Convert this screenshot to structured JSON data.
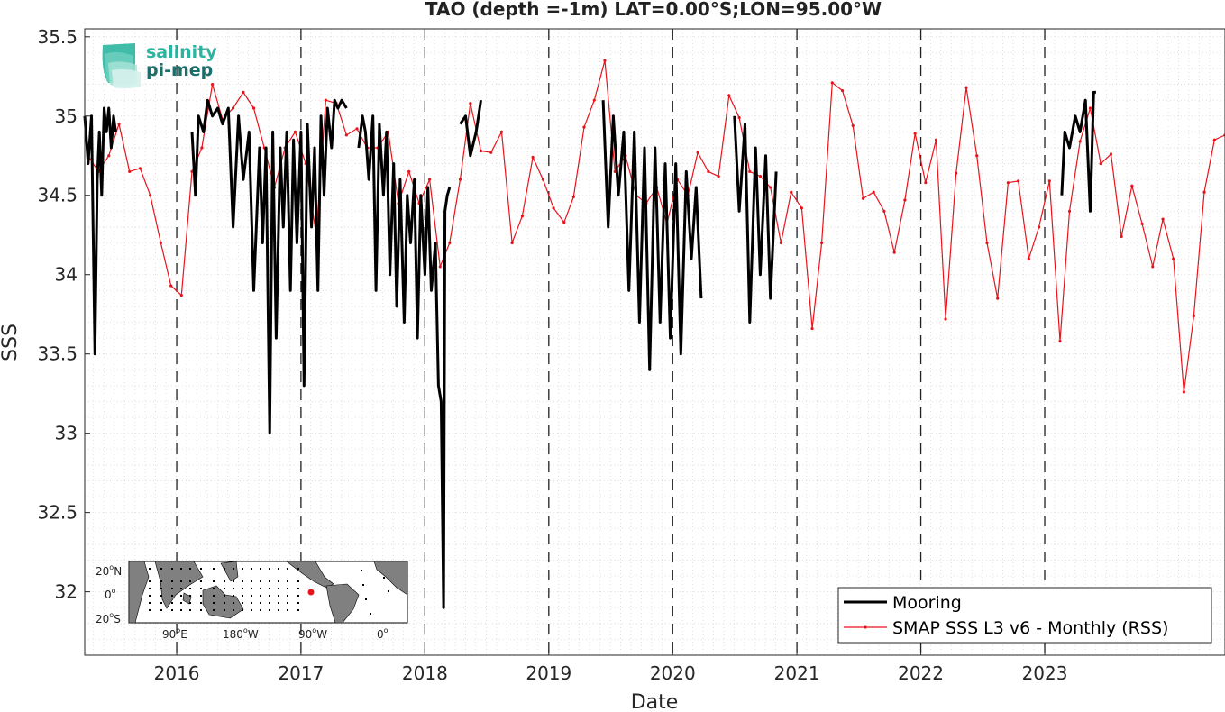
{
  "logo": {
    "line1": "salinity",
    "line2": "pi-mep",
    "color1": "#2bb5a0",
    "color2": "#1b6e6a"
  },
  "chart_data": {
    "type": "line",
    "title": "TAO (depth =-1m) LAT=0.00°S;LON=95.00°W",
    "xlabel": "Date",
    "ylabel": "SSS",
    "xlim": [
      "2015-04-05",
      "2024-06-15"
    ],
    "ylim": [
      31.6,
      35.55
    ],
    "yticks": [
      32,
      32.5,
      33,
      33.5,
      34,
      34.5,
      35,
      35.5
    ],
    "ytick_labels": [
      "32",
      "32.5",
      "33",
      "33.5",
      "34",
      "34.5",
      "35",
      "35.5"
    ],
    "xticks": [
      "2016-01-01",
      "2017-01-01",
      "2018-01-01",
      "2019-01-01",
      "2020-01-01",
      "2021-01-01",
      "2022-01-01",
      "2023-01-01"
    ],
    "xtick_labels": [
      "2016",
      "2017",
      "2018",
      "2019",
      "2020",
      "2021",
      "2022",
      "2023"
    ],
    "grid": true,
    "year_separators": "dashed",
    "legend": {
      "position": "bottom-right",
      "items": [
        "Mooring",
        "SMAP SSS L3 v6 - Monthly (RSS)"
      ]
    },
    "series": [
      {
        "name": "Mooring",
        "color": "#000000",
        "segments": [
          {
            "x": [
              "2015-04-05",
              "2015-04-15",
              "2015-04-25",
              "2015-05-05",
              "2015-05-12",
              "2015-05-18",
              "2015-05-25",
              "2015-06-01",
              "2015-06-08",
              "2015-06-15",
              "2015-06-22",
              "2015-06-29",
              "2015-07-05"
            ],
            "y": [
              35.0,
              34.7,
              35.0,
              33.5,
              34.6,
              34.9,
              34.5,
              35.05,
              34.9,
              35.05,
              34.8,
              35.0,
              34.9
            ]
          },
          {
            "x": [
              "2016-02-15",
              "2016-02-25",
              "2016-03-05",
              "2016-03-20",
              "2016-04-01",
              "2016-04-15",
              "2016-05-01",
              "2016-05-15",
              "2016-06-01",
              "2016-06-15",
              "2016-07-01",
              "2016-07-15",
              "2016-08-01",
              "2016-08-15",
              "2016-09-01",
              "2016-09-10",
              "2016-09-20",
              "2016-10-01",
              "2016-10-10",
              "2016-10-20",
              "2016-11-01",
              "2016-11-10",
              "2016-11-20",
              "2016-12-01",
              "2016-12-10",
              "2016-12-20",
              "2017-01-01",
              "2017-01-10",
              "2017-01-20",
              "2017-02-01",
              "2017-02-10",
              "2017-02-20",
              "2017-03-01",
              "2017-03-10",
              "2017-03-20",
              "2017-04-01",
              "2017-04-10",
              "2017-04-20",
              "2017-05-01",
              "2017-05-15"
            ],
            "y": [
              34.9,
              34.5,
              35.0,
              34.9,
              35.1,
              35.0,
              35.05,
              34.95,
              35.05,
              34.3,
              35.0,
              34.6,
              34.9,
              33.9,
              34.8,
              34.2,
              34.8,
              33.0,
              34.9,
              33.6,
              34.8,
              34.3,
              34.9,
              33.9,
              34.85,
              34.2,
              34.9,
              33.3,
              34.95,
              34.3,
              34.8,
              33.9,
              35.0,
              34.5,
              35.05,
              34.8,
              35.1,
              35.05,
              35.1,
              35.05
            ]
          },
          {
            "x": [
              "2017-06-20",
              "2017-07-01",
              "2017-07-10",
              "2017-07-20",
              "2017-08-01",
              "2017-08-10",
              "2017-08-20",
              "2017-09-01",
              "2017-09-10",
              "2017-09-20",
              "2017-10-01",
              "2017-10-10",
              "2017-10-20",
              "2017-11-01",
              "2017-11-10",
              "2017-11-20",
              "2017-12-01",
              "2017-12-10",
              "2017-12-20",
              "2018-01-01",
              "2018-01-10",
              "2018-01-20",
              "2018-02-01",
              "2018-02-10",
              "2018-02-18",
              "2018-02-25",
              "2018-03-01",
              "2018-03-08",
              "2018-03-15"
            ],
            "y": [
              34.8,
              35.0,
              34.9,
              34.6,
              35.0,
              33.9,
              34.95,
              34.5,
              34.9,
              34.0,
              34.7,
              33.8,
              34.6,
              33.7,
              34.5,
              34.2,
              34.6,
              33.6,
              34.5,
              34.0,
              34.55,
              33.9,
              34.2,
              33.3,
              33.2,
              31.9,
              34.4,
              34.5,
              34.55
            ]
          },
          {
            "x": [
              "2018-04-15",
              "2018-05-01",
              "2018-05-15",
              "2018-06-01",
              "2018-06-15"
            ],
            "y": [
              34.95,
              35.0,
              34.75,
              34.9,
              35.1
            ]
          },
          {
            "x": [
              "2019-06-10",
              "2019-06-25",
              "2019-07-10",
              "2019-07-25",
              "2019-08-10",
              "2019-08-25",
              "2019-09-10",
              "2019-09-25",
              "2019-10-10",
              "2019-10-25",
              "2019-11-10",
              "2019-11-25",
              "2019-12-10",
              "2019-12-25",
              "2020-01-10",
              "2020-01-25",
              "2020-02-10",
              "2020-02-25",
              "2020-03-10",
              "2020-03-25"
            ],
            "y": [
              35.1,
              34.3,
              35.0,
              34.5,
              34.9,
              33.9,
              34.9,
              33.7,
              34.8,
              33.4,
              34.8,
              33.7,
              34.7,
              33.6,
              34.7,
              33.5,
              34.65,
              34.1,
              34.55,
              33.85
            ]
          },
          {
            "x": [
              "2020-07-01",
              "2020-07-15",
              "2020-08-01",
              "2020-08-15",
              "2020-09-01",
              "2020-09-15",
              "2020-10-01",
              "2020-10-15",
              "2020-11-01"
            ],
            "y": [
              35.0,
              34.4,
              34.95,
              33.7,
              34.8,
              34.0,
              34.75,
              33.85,
              34.65
            ]
          },
          {
            "x": [
              "2023-02-20",
              "2023-03-01",
              "2023-03-15",
              "2023-04-01",
              "2023-04-15",
              "2023-05-01",
              "2023-05-15",
              "2023-05-25",
              "2023-06-01"
            ],
            "y": [
              34.5,
              34.9,
              34.8,
              35.0,
              34.9,
              35.1,
              34.4,
              35.15,
              35.15
            ]
          }
        ]
      },
      {
        "name": "SMAP SSS L3 v6 - Monthly (RSS)",
        "color": "#e8141c",
        "x": [
          "2015-04-15",
          "2015-05-15",
          "2015-06-15",
          "2015-07-15",
          "2015-08-15",
          "2015-09-15",
          "2015-10-15",
          "2015-11-15",
          "2015-12-15",
          "2016-01-15",
          "2016-02-15",
          "2016-03-15",
          "2016-04-15",
          "2016-05-15",
          "2016-06-15",
          "2016-07-15",
          "2016-08-15",
          "2016-09-15",
          "2016-10-15",
          "2016-11-15",
          "2016-12-15",
          "2017-01-15",
          "2017-02-15",
          "2017-03-15",
          "2017-04-15",
          "2017-05-15",
          "2017-06-15",
          "2017-07-15",
          "2017-08-15",
          "2017-09-15",
          "2017-10-15",
          "2017-11-15",
          "2017-12-15",
          "2018-01-15",
          "2018-02-15",
          "2018-03-15",
          "2018-04-15",
          "2018-05-15",
          "2018-06-15",
          "2018-07-15",
          "2018-08-15",
          "2018-09-15",
          "2018-10-15",
          "2018-11-15",
          "2018-12-15",
          "2019-01-15",
          "2019-02-15",
          "2019-03-15",
          "2019-04-15",
          "2019-05-15",
          "2019-06-15",
          "2019-07-15",
          "2019-08-15",
          "2019-09-15",
          "2019-10-15",
          "2019-11-15",
          "2019-12-15",
          "2020-01-15",
          "2020-02-15",
          "2020-03-15",
          "2020-04-15",
          "2020-05-15",
          "2020-06-15",
          "2020-07-15",
          "2020-08-15",
          "2020-09-15",
          "2020-10-15",
          "2020-11-15",
          "2020-12-15",
          "2021-01-15",
          "2021-02-15",
          "2021-03-15",
          "2021-04-15",
          "2021-05-15",
          "2021-06-15",
          "2021-07-15",
          "2021-08-15",
          "2021-09-15",
          "2021-10-15",
          "2021-11-15",
          "2021-12-15",
          "2022-01-15",
          "2022-02-15",
          "2022-03-15",
          "2022-04-15",
          "2022-05-15",
          "2022-06-15",
          "2022-07-15",
          "2022-08-15",
          "2022-09-15",
          "2022-10-15",
          "2022-11-15",
          "2022-12-15",
          "2023-01-15",
          "2023-02-15",
          "2023-03-15",
          "2023-04-15",
          "2023-05-15",
          "2023-06-15",
          "2023-07-15",
          "2023-08-15",
          "2023-09-15",
          "2023-10-15",
          "2023-11-15",
          "2023-12-15",
          "2024-01-15",
          "2024-02-15",
          "2024-03-15",
          "2024-04-15",
          "2024-05-15",
          "2024-06-15"
        ],
        "y": [
          34.75,
          34.65,
          34.75,
          34.95,
          34.65,
          34.67,
          34.5,
          34.2,
          33.93,
          33.87,
          34.65,
          34.8,
          35.2,
          34.98,
          35.05,
          35.15,
          35.05,
          34.8,
          34.55,
          34.8,
          34.9,
          34.7,
          34.25,
          35.1,
          35.08,
          34.88,
          34.92,
          34.8,
          34.8,
          34.9,
          34.45,
          34.65,
          34.45,
          34.6,
          34.05,
          34.2,
          34.6,
          35.08,
          34.78,
          34.77,
          34.9,
          34.2,
          34.37,
          34.74,
          34.6,
          34.42,
          34.33,
          34.49,
          34.93,
          35.1,
          35.35,
          34.65,
          34.75,
          34.5,
          34.45,
          34.55,
          34.32,
          34.6,
          34.5,
          34.77,
          34.65,
          34.62,
          35.13,
          34.99,
          34.65,
          34.62,
          34.55,
          34.2,
          34.52,
          34.42,
          33.66,
          34.2,
          35.21,
          35.16,
          34.94,
          34.48,
          34.52,
          34.4,
          34.14,
          34.47,
          34.89,
          34.58,
          34.85,
          33.72,
          34.64,
          35.18,
          34.75,
          34.2,
          33.85,
          34.58,
          34.59,
          34.1,
          34.3,
          34.59,
          33.58,
          34.4,
          34.84,
          35.05,
          34.7,
          34.76,
          34.24,
          34.56,
          34.32,
          34.05,
          34.35,
          34.1,
          33.26,
          33.74,
          34.52,
          34.85,
          34.88
        ]
      }
    ]
  },
  "inset_map": {
    "lat_labels": [
      "20",
      "0",
      "20"
    ],
    "lat_suffix": [
      "N",
      "",
      "S"
    ],
    "lon_labels": [
      "90",
      "180",
      "90",
      "0"
    ],
    "lon_suffix": [
      "E",
      "W",
      "W",
      ""
    ],
    "degree": "o",
    "highlight_color": "#e8141c",
    "land_color": "#808080"
  }
}
